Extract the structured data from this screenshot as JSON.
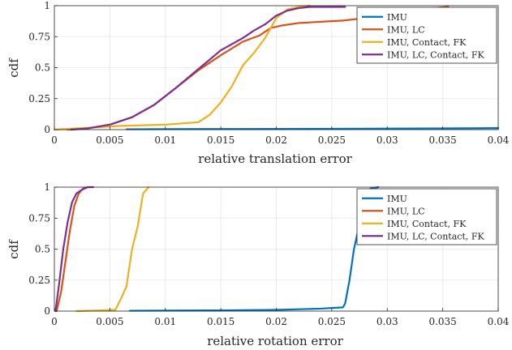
{
  "chart_data": [
    {
      "type": "line",
      "title": "",
      "xlabel": "relative translation error",
      "ylabel": "cdf",
      "xlim": [
        0,
        0.04
      ],
      "ylim": [
        0,
        1
      ],
      "xticks": [
        0,
        0.005,
        0.01,
        0.015,
        0.02,
        0.025,
        0.03,
        0.035,
        0.04
      ],
      "xtick_labels": [
        "0",
        "0.005",
        "0.01",
        "0.015",
        "0.02",
        "0.025",
        "0.03",
        "0.035",
        "0.04"
      ],
      "yticks": [
        0,
        0.25,
        0.5,
        0.75,
        1
      ],
      "ytick_labels": [
        "0",
        "0.25",
        "0.5",
        "0.75",
        "1"
      ],
      "grid": true,
      "legend": "top-right",
      "series": [
        {
          "name": "IMU",
          "color": "#0072BD",
          "x": [
            0.0065,
            0.01,
            0.015,
            0.02,
            0.025,
            0.03,
            0.035,
            0.04
          ],
          "y": [
            0.003,
            0.004,
            0.005,
            0.006,
            0.007,
            0.008,
            0.01,
            0.012
          ]
        },
        {
          "name": "IMU, LC",
          "color": "#D95319",
          "x": [
            0.0012,
            0.003,
            0.005,
            0.007,
            0.009,
            0.011,
            0.013,
            0.015,
            0.017,
            0.0185,
            0.0195,
            0.0205,
            0.022,
            0.024,
            0.026,
            0.028,
            0.03,
            0.032,
            0.034,
            0.0355
          ],
          "y": [
            0.0,
            0.01,
            0.04,
            0.1,
            0.2,
            0.34,
            0.48,
            0.6,
            0.71,
            0.76,
            0.82,
            0.84,
            0.86,
            0.87,
            0.88,
            0.9,
            0.93,
            0.96,
            0.98,
            0.99
          ]
        },
        {
          "name": "IMU, Contact, FK",
          "color": "#EDB120",
          "x": [
            0.0,
            0.006,
            0.01,
            0.013,
            0.014,
            0.015,
            0.016,
            0.017,
            0.018,
            0.019,
            0.02,
            0.021,
            0.022,
            0.023
          ],
          "y": [
            0.0,
            0.03,
            0.04,
            0.06,
            0.12,
            0.22,
            0.35,
            0.52,
            0.62,
            0.74,
            0.9,
            0.97,
            0.99,
            1.0
          ]
        },
        {
          "name": "IMU, LC, Contact, FK",
          "color": "#7E2F8E",
          "x": [
            0.0015,
            0.003,
            0.005,
            0.007,
            0.009,
            0.011,
            0.013,
            0.015,
            0.017,
            0.018,
            0.019,
            0.02,
            0.021,
            0.022,
            0.023,
            0.024,
            0.0262
          ],
          "y": [
            0.0,
            0.01,
            0.04,
            0.1,
            0.2,
            0.34,
            0.49,
            0.64,
            0.74,
            0.8,
            0.85,
            0.92,
            0.96,
            0.98,
            0.99,
            0.99,
            0.99
          ]
        }
      ]
    },
    {
      "type": "line",
      "title": "",
      "xlabel": "relative rotation error",
      "ylabel": "cdf",
      "xlim": [
        0,
        0.04
      ],
      "ylim": [
        0,
        1
      ],
      "xticks": [
        0,
        0.005,
        0.01,
        0.015,
        0.02,
        0.025,
        0.03,
        0.035,
        0.04
      ],
      "xtick_labels": [
        "0",
        "0.005",
        "0.01",
        "0.015",
        "0.02",
        "0.025",
        "0.03",
        "0.035",
        "0.04"
      ],
      "yticks": [
        0,
        0.25,
        0.5,
        0.75,
        1
      ],
      "ytick_labels": [
        "0",
        "0.25",
        "0.5",
        "0.75",
        "1"
      ],
      "grid": true,
      "legend": "top-right",
      "series": [
        {
          "name": "IMU",
          "color": "#0072BD",
          "x": [
            0.0068,
            0.01,
            0.015,
            0.02,
            0.024,
            0.026,
            0.0262,
            0.0266,
            0.027,
            0.0275,
            0.028,
            0.0285,
            0.0292
          ],
          "y": [
            0.003,
            0.004,
            0.006,
            0.01,
            0.02,
            0.03,
            0.06,
            0.25,
            0.5,
            0.7,
            0.92,
            0.99,
            1.0
          ]
        },
        {
          "name": "IMU, LC",
          "color": "#D95319",
          "x": [
            0.0002,
            0.0006,
            0.001,
            0.0014,
            0.0018,
            0.0022,
            0.0026,
            0.003
          ],
          "y": [
            0.0,
            0.15,
            0.4,
            0.65,
            0.85,
            0.95,
            0.99,
            1.0
          ]
        },
        {
          "name": "IMU, Contact, FK",
          "color": "#EDB120",
          "x": [
            0.002,
            0.0055,
            0.006,
            0.0065,
            0.007,
            0.0075,
            0.008,
            0.0085
          ],
          "y": [
            0.0,
            0.01,
            0.1,
            0.2,
            0.5,
            0.68,
            0.95,
            1.0
          ]
        },
        {
          "name": "IMU, LC, Contact, FK",
          "color": "#7E2F8E",
          "x": [
            0.0001,
            0.0004,
            0.0008,
            0.0012,
            0.0016,
            0.002,
            0.0025,
            0.003,
            0.0035
          ],
          "y": [
            0.0,
            0.2,
            0.5,
            0.72,
            0.88,
            0.95,
            0.98,
            1.0,
            1.0
          ]
        }
      ]
    }
  ]
}
